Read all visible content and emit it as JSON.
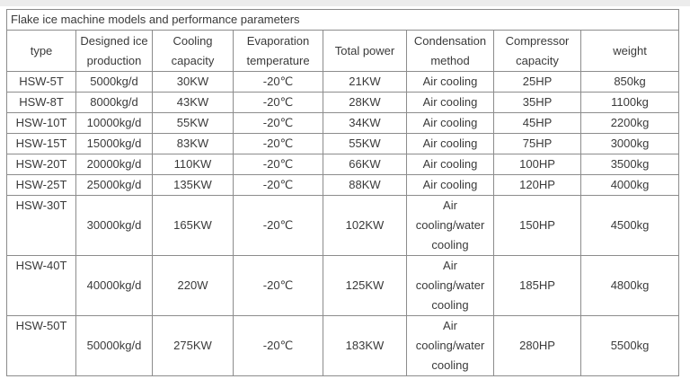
{
  "table": {
    "title": "Flake ice machine models and performance parameters",
    "columns": [
      "type",
      "Designed ice production",
      "Cooling capacity",
      "Evaporation temperature",
      "Total power",
      "Condensation method",
      "Compressor capacity",
      "weight"
    ],
    "rows": [
      {
        "type": "HSW-5T",
        "designed_ice_production": "5000kg/d",
        "cooling_capacity": "30KW",
        "evaporation_temperature": "-20℃",
        "total_power": "21KW",
        "condensation_method": "Air cooling",
        "compressor_capacity": "25HP",
        "weight": "850kg"
      },
      {
        "type": "HSW-8T",
        "designed_ice_production": "8000kg/d",
        "cooling_capacity": "43KW",
        "evaporation_temperature": "-20℃",
        "total_power": "28KW",
        "condensation_method": "Air cooling",
        "compressor_capacity": "35HP",
        "weight": "1100kg"
      },
      {
        "type": "HSW-10T",
        "designed_ice_production": "10000kg/d",
        "cooling_capacity": "55KW",
        "evaporation_temperature": "-20℃",
        "total_power": "34KW",
        "condensation_method": "Air cooling",
        "compressor_capacity": "45HP",
        "weight": "2200kg"
      },
      {
        "type": "HSW-15T",
        "designed_ice_production": "15000kg/d",
        "cooling_capacity": "83KW",
        "evaporation_temperature": "-20℃",
        "total_power": "55KW",
        "condensation_method": "Air cooling",
        "compressor_capacity": "75HP",
        "weight": "3000kg"
      },
      {
        "type": "HSW-20T",
        "designed_ice_production": "20000kg/d",
        "cooling_capacity": "110KW",
        "evaporation_temperature": "-20℃",
        "total_power": "66KW",
        "condensation_method": "Air cooling",
        "compressor_capacity": "100HP",
        "weight": "3500kg"
      },
      {
        "type": "HSW-25T",
        "designed_ice_production": "25000kg/d",
        "cooling_capacity": "135KW",
        "evaporation_temperature": "-20℃",
        "total_power": "88KW",
        "condensation_method": "Air cooling",
        "compressor_capacity": "120HP",
        "weight": "4000kg"
      },
      {
        "type": "HSW-30T",
        "designed_ice_production": "30000kg/d",
        "cooling_capacity": "165KW",
        "evaporation_temperature": "-20℃",
        "total_power": "102KW",
        "condensation_method": "Air cooling/water cooling",
        "compressor_capacity": "150HP",
        "weight": "4500kg"
      },
      {
        "type": "HSW-40T",
        "designed_ice_production": "40000kg/d",
        "cooling_capacity": "220W",
        "evaporation_temperature": "-20℃",
        "total_power": "125KW",
        "condensation_method": "Air cooling/water cooling",
        "compressor_capacity": "185HP",
        "weight": "4800kg"
      },
      {
        "type": "HSW-50T",
        "designed_ice_production": "50000kg/d",
        "cooling_capacity": "275KW",
        "evaporation_temperature": "-20℃",
        "total_power": "183KW",
        "condensation_method": "Air cooling/water cooling",
        "compressor_capacity": "280HP",
        "weight": "5500kg"
      }
    ],
    "colors": {
      "title_blue": "#1365cb",
      "border_gray": "#8c8c8c",
      "text_dark": "#3a3a3a"
    }
  }
}
